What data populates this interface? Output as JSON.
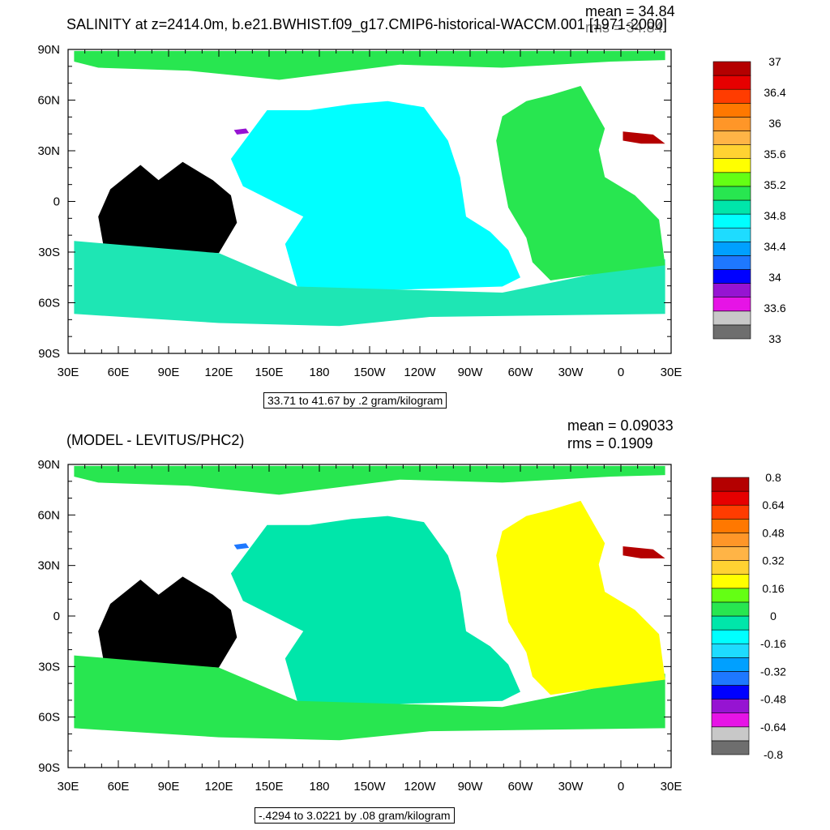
{
  "chart_data": [
    {
      "type": "heatmap",
      "title": "SALINITY at z=2414.0m, b.e21.BWHIST.f09_g17.CMIP6-historical-WACCM.001 [1971-2000]",
      "stats": {
        "mean": "mean = 34.84",
        "rms": "rms = 34.84"
      },
      "y_ticks": [
        "90N",
        "60N",
        "30N",
        "0",
        "30S",
        "60S",
        "90S"
      ],
      "x_ticks": [
        "30E",
        "60E",
        "90E",
        "120E",
        "150E",
        "180",
        "150W",
        "120W",
        "90W",
        "60W",
        "30W",
        "0",
        "30E"
      ],
      "info": "33.71 to 41.67 by .2 gram/kilogram",
      "colorbar": {
        "colors": [
          "#6e6e6e",
          "#c8c8c8",
          "#e614e6",
          "#9614d2",
          "#0000ff",
          "#1e78ff",
          "#00a0ff",
          "#1edcff",
          "#00ffff",
          "#00e6aa",
          "#28e650",
          "#64ff14",
          "#ffff00",
          "#ffd232",
          "#ffb446",
          "#ff9628",
          "#ff7800",
          "#ff3c00",
          "#e60000",
          "#b40000"
        ],
        "labels": [
          "37",
          "36.4",
          "36",
          "35.6",
          "35.2",
          "34.8",
          "34.4",
          "34",
          "33.6",
          "33"
        ]
      },
      "regions": {
        "pacific": "#00ffff",
        "southern": "#1ee6b4",
        "atlantic": "#28e650",
        "arctic": "#28e650",
        "med": "#b40000",
        "marginal": "#9614d2"
      }
    },
    {
      "type": "heatmap",
      "title": "(MODEL - LEVITUS/PHC2)",
      "stats": {
        "mean": "mean = 0.09033",
        "rms": "rms = 0.1909"
      },
      "y_ticks": [
        "90N",
        "60N",
        "30N",
        "0",
        "30S",
        "60S",
        "90S"
      ],
      "x_ticks": [
        "30E",
        "60E",
        "90E",
        "120E",
        "150E",
        "180",
        "150W",
        "120W",
        "90W",
        "60W",
        "30W",
        "0",
        "30E"
      ],
      "info": "-.4294 to 3.0221 by .08 gram/kilogram",
      "colorbar": {
        "colors": [
          "#6e6e6e",
          "#c8c8c8",
          "#e614e6",
          "#9614d2",
          "#0000ff",
          "#1e78ff",
          "#00a0ff",
          "#1edcff",
          "#00ffff",
          "#00e6aa",
          "#28e650",
          "#64ff14",
          "#ffff00",
          "#ffd232",
          "#ffb446",
          "#ff9628",
          "#ff7800",
          "#ff3c00",
          "#e60000",
          "#b40000"
        ],
        "labels": [
          "0.8",
          "0.64",
          "0.48",
          "0.32",
          "0.16",
          "0",
          "-0.16",
          "-0.32",
          "-0.48",
          "-0.64",
          "-0.8"
        ]
      },
      "regions": {
        "pacific": "#00e6aa",
        "southern": "#28e650",
        "atlantic": "#ffff00",
        "arctic": "#28e650",
        "med": "#b40000",
        "marginal": "#1e78ff"
      }
    }
  ]
}
